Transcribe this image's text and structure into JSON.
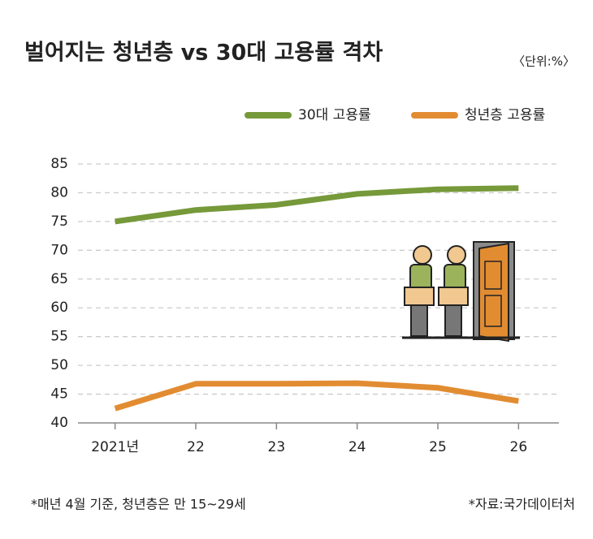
{
  "title": "벌어지는 청년층 vs 30대 고용률 격차",
  "unit": "〈단위:%〉",
  "chart_data": {
    "type": "line",
    "categories": [
      "2021년",
      "22",
      "23",
      "24",
      "25",
      "26"
    ],
    "series": [
      {
        "name": "30대 고용률",
        "color": "#76993a",
        "values": [
          75,
          77,
          77.9,
          79.8,
          80.6,
          80.8
        ]
      },
      {
        "name": "청년층 고용률",
        "color": "#e28c32",
        "values": [
          42.5,
          46.8,
          46.8,
          46.9,
          46.1,
          43.8
        ]
      }
    ],
    "ylim": [
      40,
      85
    ],
    "yticks": [
      40,
      45,
      50,
      55,
      60,
      65,
      70,
      75,
      80,
      85
    ],
    "grid": true
  },
  "notes": {
    "left": "*매년 4월 기준, 청년층은 만 15~29세",
    "right": "*자료:국가데이터처"
  }
}
